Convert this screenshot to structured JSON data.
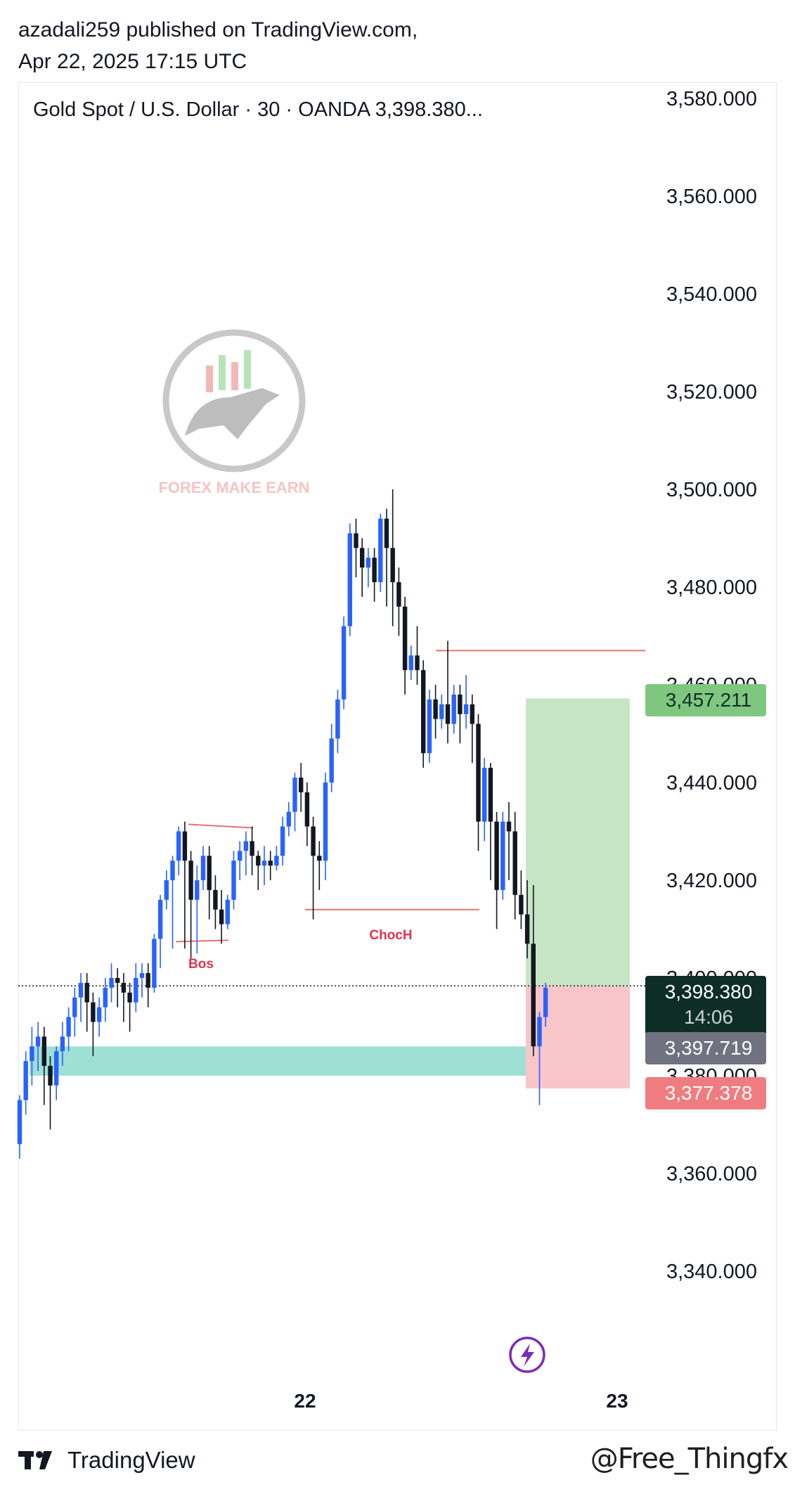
{
  "header": {
    "line1": "azadali259 published on TradingView.com,",
    "line2": "Apr 22, 2025 17:15 UTC"
  },
  "chart_data": {
    "type": "candlestick",
    "title": "Gold Spot / U.S. Dollar · 30 · OANDA  3,398.380...",
    "y_ticks": [
      "3,580.000",
      "3,560.000",
      "3,540.000",
      "3,520.000",
      "3,500.000",
      "3,480.000",
      "3,460.000",
      "3,440.000",
      "3,420.000",
      "3,400.000",
      "3,380.000",
      "3,360.000",
      "3,340.000"
    ],
    "y_tick_values": [
      3580,
      3560,
      3540,
      3520,
      3500,
      3480,
      3460,
      3440,
      3420,
      3400,
      3380,
      3360,
      3340
    ],
    "ylim": [
      3328,
      3582
    ],
    "x_ticks": [
      "22",
      "23"
    ],
    "candles": [
      [
        3366,
        3375,
        3363,
        3376
      ],
      [
        3375,
        3383,
        3372,
        3385
      ],
      [
        3383,
        3386,
        3378,
        3390
      ],
      [
        3386,
        3388,
        3381,
        3391
      ],
      [
        3388,
        3382,
        3374,
        3390
      ],
      [
        3382,
        3378,
        3369,
        3384
      ],
      [
        3378,
        3385,
        3375,
        3386
      ],
      [
        3385,
        3388,
        3382,
        3391
      ],
      [
        3388,
        3392,
        3385,
        3394
      ],
      [
        3392,
        3396,
        3388,
        3398
      ],
      [
        3396,
        3399,
        3391,
        3401
      ],
      [
        3399,
        3395,
        3389,
        3401
      ],
      [
        3395,
        3391,
        3384,
        3397
      ],
      [
        3391,
        3394,
        3388,
        3396
      ],
      [
        3394,
        3398,
        3391,
        3400
      ],
      [
        3398,
        3400,
        3395,
        3403
      ],
      [
        3400,
        3399,
        3394,
        3402
      ],
      [
        3399,
        3397,
        3391,
        3401
      ],
      [
        3397,
        3395,
        3389,
        3399
      ],
      [
        3395,
        3400,
        3393,
        3403
      ],
      [
        3400,
        3401,
        3396,
        3403
      ],
      [
        3401,
        3398,
        3394,
        3403
      ],
      [
        3398,
        3408,
        3397,
        3409
      ],
      [
        3408,
        3416,
        3402,
        3417
      ],
      [
        3416,
        3420,
        3414,
        3422
      ],
      [
        3420,
        3424,
        3406,
        3425
      ],
      [
        3424,
        3430,
        3421,
        3431
      ],
      [
        3430,
        3424,
        3406,
        3432
      ],
      [
        3424,
        3416,
        3404,
        3426
      ],
      [
        3416,
        3420,
        3405,
        3423
      ],
      [
        3420,
        3425,
        3418,
        3427
      ],
      [
        3425,
        3418,
        3412,
        3427
      ],
      [
        3418,
        3414,
        3410,
        3421
      ],
      [
        3414,
        3411,
        3407,
        3418
      ],
      [
        3411,
        3416,
        3410,
        3417
      ],
      [
        3416,
        3424,
        3414,
        3426
      ],
      [
        3424,
        3426,
        3420,
        3428
      ],
      [
        3426,
        3428,
        3421,
        3430
      ],
      [
        3428,
        3425,
        3421,
        3431
      ],
      [
        3425,
        3423,
        3418,
        3426
      ],
      [
        3423,
        3424,
        3419,
        3427
      ],
      [
        3424,
        3423,
        3420,
        3426
      ],
      [
        3423,
        3425,
        3422,
        3427
      ],
      [
        3425,
        3431,
        3423,
        3433
      ],
      [
        3431,
        3434,
        3429,
        3436
      ],
      [
        3434,
        3441,
        3430,
        3442
      ],
      [
        3441,
        3438,
        3434,
        3444
      ],
      [
        3438,
        3431,
        3427,
        3440
      ],
      [
        3431,
        3425,
        3412,
        3433
      ],
      [
        3425,
        3424,
        3418,
        3428
      ],
      [
        3424,
        3440,
        3420,
        3442
      ],
      [
        3440,
        3449,
        3438,
        3452
      ],
      [
        3449,
        3457,
        3446,
        3459
      ],
      [
        3457,
        3472,
        3455,
        3474
      ],
      [
        3472,
        3491,
        3470,
        3493
      ],
      [
        3491,
        3488,
        3482,
        3494
      ],
      [
        3488,
        3484,
        3478,
        3490
      ],
      [
        3484,
        3486,
        3480,
        3488
      ],
      [
        3486,
        3481,
        3477,
        3488
      ],
      [
        3481,
        3494,
        3479,
        3495
      ],
      [
        3494,
        3488,
        3476,
        3496
      ],
      [
        3488,
        3481,
        3472,
        3500
      ],
      [
        3481,
        3476,
        3470,
        3484
      ],
      [
        3476,
        3463,
        3458,
        3478
      ],
      [
        3463,
        3466,
        3461,
        3468
      ],
      [
        3466,
        3463,
        3460,
        3472
      ],
      [
        3463,
        3446,
        3443,
        3465
      ],
      [
        3446,
        3457,
        3444,
        3459
      ],
      [
        3457,
        3453,
        3449,
        3460
      ],
      [
        3453,
        3456,
        3451,
        3458
      ],
      [
        3456,
        3452,
        3448,
        3469
      ],
      [
        3452,
        3458,
        3450,
        3460
      ],
      [
        3458,
        3454,
        3448,
        3460
      ],
      [
        3454,
        3456,
        3451,
        3462
      ],
      [
        3456,
        3452,
        3444,
        3458
      ],
      [
        3452,
        3432,
        3426,
        3454
      ],
      [
        3432,
        3443,
        3428,
        3445
      ],
      [
        3443,
        3432,
        3420,
        3444
      ],
      [
        3432,
        3418,
        3410,
        3434
      ],
      [
        3418,
        3432,
        3416,
        3434
      ],
      [
        3432,
        3430,
        3420,
        3436
      ],
      [
        3430,
        3417,
        3412,
        3434
      ],
      [
        3417,
        3413,
        3410,
        3422
      ],
      [
        3413,
        3407,
        3404,
        3420
      ],
      [
        3407,
        3386,
        3384,
        3419
      ],
      [
        3386,
        3392,
        3374,
        3393
      ],
      [
        3392,
        3398,
        3390,
        3399
      ]
    ],
    "labels": {
      "bos": "Bos",
      "choch": "ChocH"
    },
    "annotations": {
      "bos_level": 3408,
      "bos_top_level": 3431,
      "choch_level": 3414,
      "top_level": 3467,
      "demand_zone": [
        3380,
        3386
      ],
      "take_profit": 3457.211,
      "entry": 3398.38,
      "stop": 3377.378
    },
    "price_badges": {
      "tp": "3,457.211",
      "current": "3,398.380",
      "countdown": "14:06",
      "mid": "3,397.719",
      "sl": "3,377.378"
    },
    "colors": {
      "up": "#2962ff",
      "down": "#131722",
      "level": "#e57373",
      "label": "#e0344d",
      "zone": "#9fe0d4",
      "tp_zone": "#c6e5c4",
      "sl_zone": "#f8c5c9",
      "badge_tp": "#7fc77f",
      "badge_current": "#0e2e25",
      "badge_mid": "#70737f",
      "badge_sl": "#ef7d80"
    }
  },
  "watermark": {
    "text": "FOREX MAKE EARN",
    "icon": "bull-logo-icon"
  },
  "flash_icon": "lightning-icon",
  "footer": {
    "brand": "TradingView",
    "user_tag": "@Free_Thingfx",
    "logo_icon": "tradingview-logo-icon"
  }
}
